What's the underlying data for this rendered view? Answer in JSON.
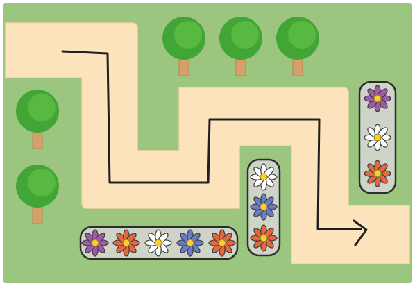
{
  "board": {
    "colors": {
      "grass": "#9cc67f",
      "frame": "#ffffff",
      "path": "#fde3bb",
      "route_line": "#1f1f1f",
      "planter": "#cfd4c9",
      "tree_foliage": "#41a636",
      "tree_foliage_light": "#5cbe45",
      "tree_trunk": "#d8a069",
      "flower_center": "#f7cf2f"
    },
    "path": {
      "shape": "winding-path",
      "ends": [
        "left-edge-entry",
        "right-edge-exit"
      ]
    },
    "route": {
      "marker": "arrow-head",
      "direction": "right"
    },
    "trees": [
      {
        "icon": "tree-icon",
        "group": "top-row"
      },
      {
        "icon": "tree-icon",
        "group": "top-row"
      },
      {
        "icon": "tree-icon",
        "group": "top-row"
      },
      {
        "icon": "tree-icon",
        "group": "left-column"
      },
      {
        "icon": "tree-icon",
        "group": "left-column"
      }
    ],
    "planters": [
      {
        "name": "bottom-planter",
        "orientation": "horizontal",
        "flowers": [
          {
            "color": "#a05ba8"
          },
          {
            "color": "#e3683f"
          },
          {
            "color": "#ffffff"
          },
          {
            "color": "#6b7cc4"
          },
          {
            "color": "#e3683f"
          }
        ]
      },
      {
        "name": "middle-planter",
        "orientation": "vertical",
        "flowers": [
          {
            "color": "#ffffff"
          },
          {
            "color": "#6b7cc4"
          },
          {
            "color": "#e3683f"
          }
        ]
      },
      {
        "name": "right-planter",
        "orientation": "vertical",
        "flowers": [
          {
            "color": "#a05ba8"
          },
          {
            "color": "#ffffff"
          },
          {
            "color": "#e3683f"
          }
        ]
      }
    ]
  }
}
